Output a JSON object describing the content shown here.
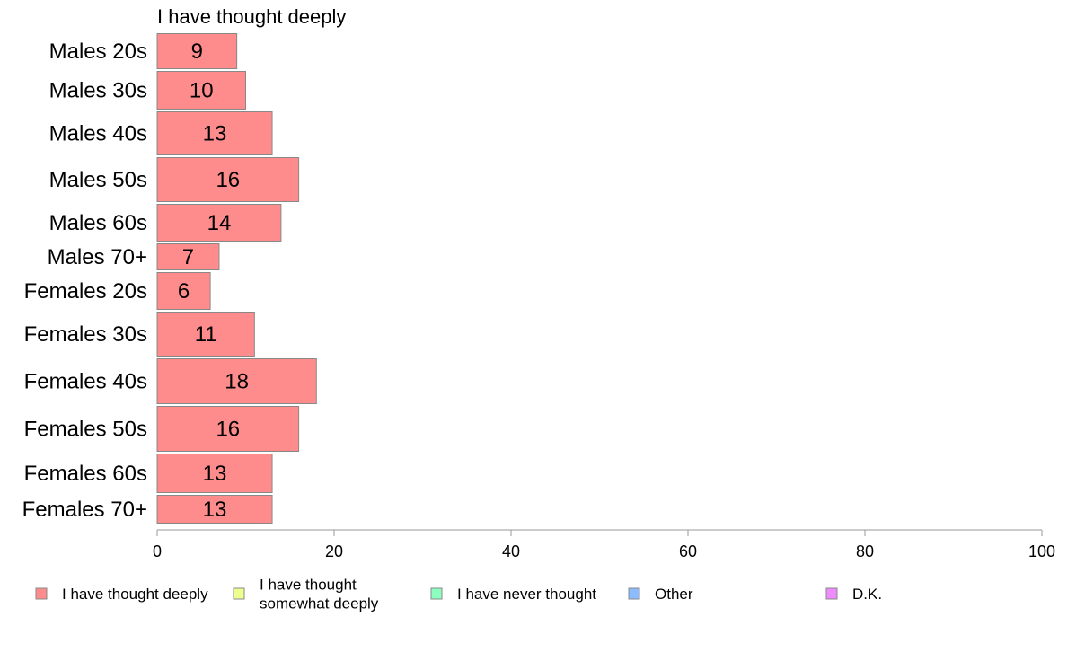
{
  "chart_data": {
    "type": "bar",
    "orientation": "horizontal",
    "title": "I have thought deeply",
    "categories": [
      "Males 20s",
      "Males 30s",
      "Males 40s",
      "Males 50s",
      "Males 60s",
      "Males 70+",
      "Females 20s",
      "Females 30s",
      "Females 40s",
      "Females 50s",
      "Females 60s",
      "Females 70+"
    ],
    "series": [
      {
        "name": "I have thought deeply",
        "color": "#ff8c8c",
        "values": [
          9,
          10,
          13,
          16,
          14,
          7,
          6,
          11,
          18,
          16,
          13,
          13
        ]
      }
    ],
    "xlim": [
      0,
      100
    ],
    "xticks": [
      0,
      20,
      40,
      60,
      80,
      100
    ],
    "grid": false,
    "legend_position": "bottom",
    "legend": [
      {
        "lines": [
          "I have thought deeply"
        ],
        "color": "#ff8c8c"
      },
      {
        "lines": [
          "I have thought",
          "somewhat deeply"
        ],
        "color": "#eeff8c"
      },
      {
        "lines": [
          "I have never thought"
        ],
        "color": "#8cffc0"
      },
      {
        "lines": [
          "Other"
        ],
        "color": "#8cbcff"
      },
      {
        "lines": [
          "D.K."
        ],
        "color": "#ee8cff"
      }
    ]
  }
}
